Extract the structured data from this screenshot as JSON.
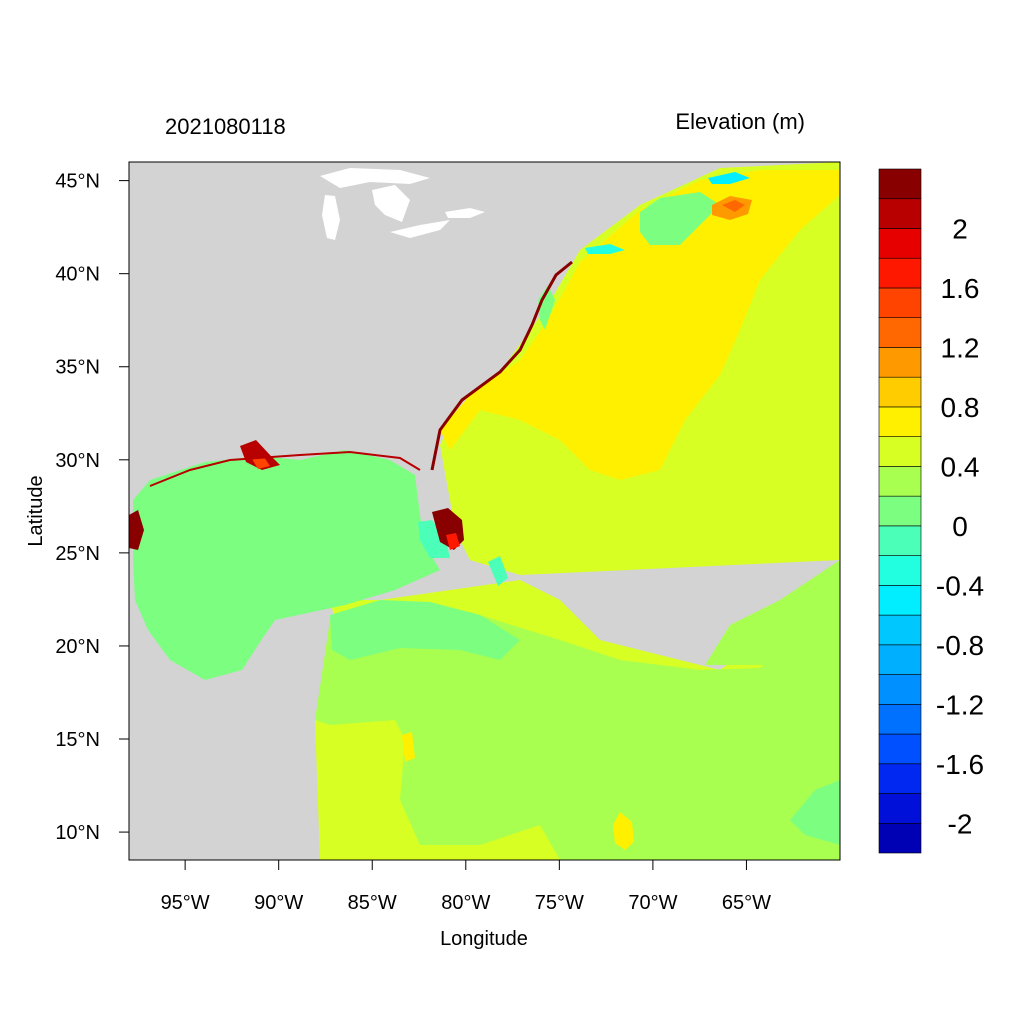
{
  "map": {
    "left_label": "2021080118",
    "right_label": "Elevation (m)",
    "xlabel": "Longitude",
    "ylabel": "Latitude",
    "lon_range": [
      -98,
      -60
    ],
    "lat_range": [
      8.5,
      46
    ],
    "x_ticks": [
      {
        "value": -95,
        "label": "95°W"
      },
      {
        "value": -90,
        "label": "90°W"
      },
      {
        "value": -85,
        "label": "85°W"
      },
      {
        "value": -80,
        "label": "80°W"
      },
      {
        "value": -75,
        "label": "75°W"
      },
      {
        "value": -70,
        "label": "70°W"
      },
      {
        "value": -65,
        "label": "65°W"
      }
    ],
    "y_ticks": [
      {
        "value": 45,
        "label": "45°N"
      },
      {
        "value": 40,
        "label": "40°N"
      },
      {
        "value": 35,
        "label": "35°N"
      },
      {
        "value": 30,
        "label": "30°N"
      },
      {
        "value": 25,
        "label": "25°N"
      },
      {
        "value": 20,
        "label": "20°N"
      },
      {
        "value": 15,
        "label": "15°N"
      },
      {
        "value": 10,
        "label": "10°N"
      }
    ],
    "land_color": "#d3d3d3",
    "colorbar": {
      "colors": [
        "#0000b4",
        "#0010d8",
        "#0028f0",
        "#0050ff",
        "#0070ff",
        "#0090ff",
        "#00b0ff",
        "#00c8ff",
        "#00eeff",
        "#22ffe0",
        "#4cffb8",
        "#7cff80",
        "#a8ff50",
        "#d7ff24",
        "#fff000",
        "#ffcc00",
        "#ff9900",
        "#ff6800",
        "#ff4400",
        "#ff1800",
        "#e60000",
        "#b80000",
        "#880000"
      ],
      "labels": [
        "-2",
        "-1.6",
        "-1.2",
        "-0.8",
        "-0.4",
        "0",
        "0.4",
        "0.8",
        "1.2",
        "1.6",
        "2"
      ]
    }
  }
}
